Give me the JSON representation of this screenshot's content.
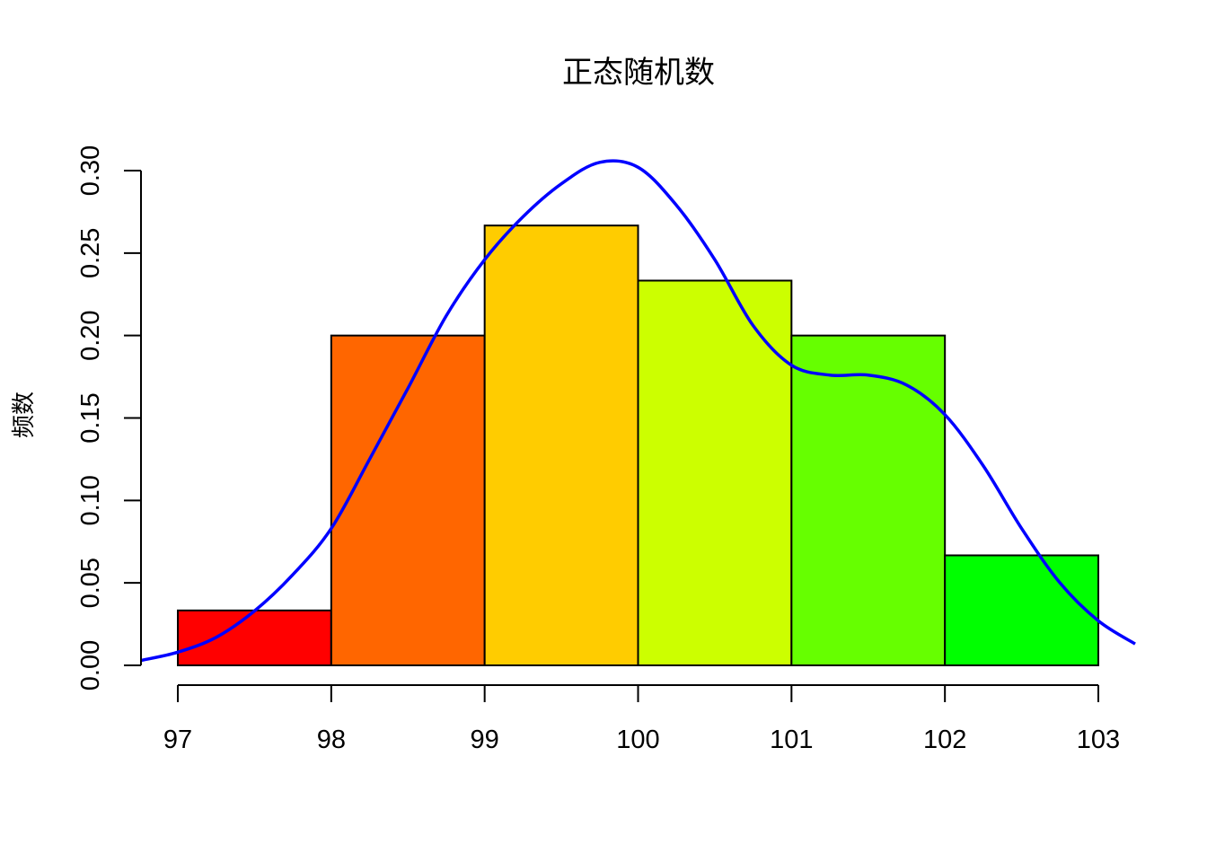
{
  "chart_data": {
    "type": "bar",
    "title": "正态随机数",
    "xlabel": "",
    "ylabel": "频数",
    "bins": [
      {
        "x0": 97,
        "x1": 98,
        "value": 0.0333,
        "color": "#FF0000"
      },
      {
        "x0": 98,
        "x1": 99,
        "value": 0.2,
        "color": "#FF6600"
      },
      {
        "x0": 99,
        "x1": 100,
        "value": 0.2667,
        "color": "#FFCC00"
      },
      {
        "x0": 100,
        "x1": 101,
        "value": 0.2333,
        "color": "#CCFF00"
      },
      {
        "x0": 101,
        "x1": 102,
        "value": 0.2,
        "color": "#66FF00"
      },
      {
        "x0": 102,
        "x1": 103,
        "value": 0.0667,
        "color": "#00FF00"
      }
    ],
    "xlim": [
      96.76,
      103.24
    ],
    "ylim": [
      0,
      0.3
    ],
    "xticks": [
      97,
      98,
      99,
      100,
      101,
      102,
      103
    ],
    "xtick_labels": [
      "97",
      "98",
      "99",
      "100",
      "101",
      "102",
      "103"
    ],
    "yticks": [
      0,
      0.05,
      0.1,
      0.15,
      0.2,
      0.25,
      0.3
    ],
    "ytick_labels": [
      "0.00",
      "0.05",
      "0.10",
      "0.15",
      "0.20",
      "0.25",
      "0.30"
    ],
    "density_line": {
      "color": "#0000FF",
      "x": [
        96.76,
        97.0,
        97.25,
        97.5,
        97.75,
        98.0,
        98.25,
        98.5,
        98.75,
        99.0,
        99.25,
        99.5,
        99.75,
        100.0,
        100.25,
        100.5,
        100.75,
        101.0,
        101.25,
        101.5,
        101.75,
        102.0,
        102.25,
        102.5,
        102.75,
        103.0,
        103.24
      ],
      "y": [
        0.003,
        0.008,
        0.017,
        0.033,
        0.055,
        0.083,
        0.125,
        0.168,
        0.212,
        0.246,
        0.272,
        0.292,
        0.305,
        0.302,
        0.279,
        0.246,
        0.206,
        0.182,
        0.176,
        0.176,
        0.17,
        0.152,
        0.121,
        0.083,
        0.05,
        0.027,
        0.013
      ]
    }
  }
}
